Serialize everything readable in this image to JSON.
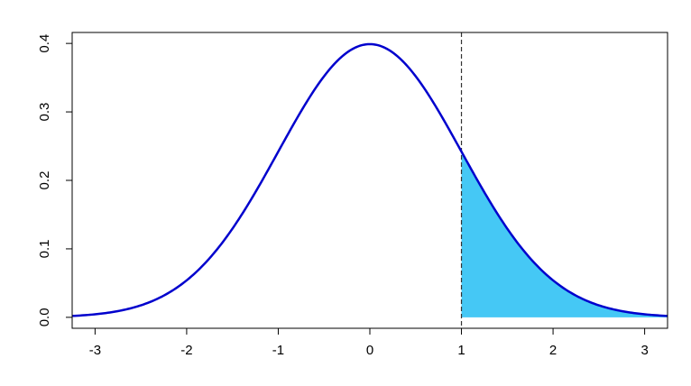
{
  "chart_data": {
    "type": "line",
    "title": "",
    "xlabel": "",
    "ylabel": "",
    "xlim": [
      -3.25,
      3.25
    ],
    "ylim": [
      -0.016,
      0.416
    ],
    "x_ticks": [
      -3,
      -2,
      -1,
      0,
      1,
      2,
      3
    ],
    "x_tick_labels": [
      "-3",
      "-2",
      "-1",
      "0",
      "1",
      "2",
      "3"
    ],
    "y_ticks": [
      0.0,
      0.1,
      0.2,
      0.3,
      0.4
    ],
    "y_tick_labels": [
      "0.0",
      "0.1",
      "0.2",
      "0.3",
      "0.4"
    ],
    "series": [
      {
        "x": [
          -3.25,
          -3.0,
          -2.75,
          -2.5,
          -2.25,
          -2.0,
          -1.75,
          -1.5,
          -1.25,
          -1.0,
          -0.75,
          -0.5,
          -0.25,
          0.0,
          0.25,
          0.5,
          0.75,
          1.0,
          1.25,
          1.5,
          1.75,
          2.0,
          2.25,
          2.5,
          2.75,
          3.0,
          3.25
        ],
        "y": [
          0.002,
          0.0044,
          0.0091,
          0.0175,
          0.0317,
          0.054,
          0.0863,
          0.1295,
          0.1826,
          0.242,
          0.3011,
          0.3521,
          0.3867,
          0.3989,
          0.3867,
          0.3521,
          0.3011,
          0.242,
          0.1826,
          0.1295,
          0.0863,
          0.054,
          0.0317,
          0.0175,
          0.0091,
          0.0044,
          0.002
        ],
        "color": "#0000cd"
      }
    ],
    "shaded_region": {
      "x_from": 1.0,
      "x_to": 3.25,
      "color": "#45c8f5"
    },
    "vline": {
      "x": 1.0,
      "style": "dashed",
      "color": "#333333"
    },
    "grid": false,
    "legend": "none"
  }
}
